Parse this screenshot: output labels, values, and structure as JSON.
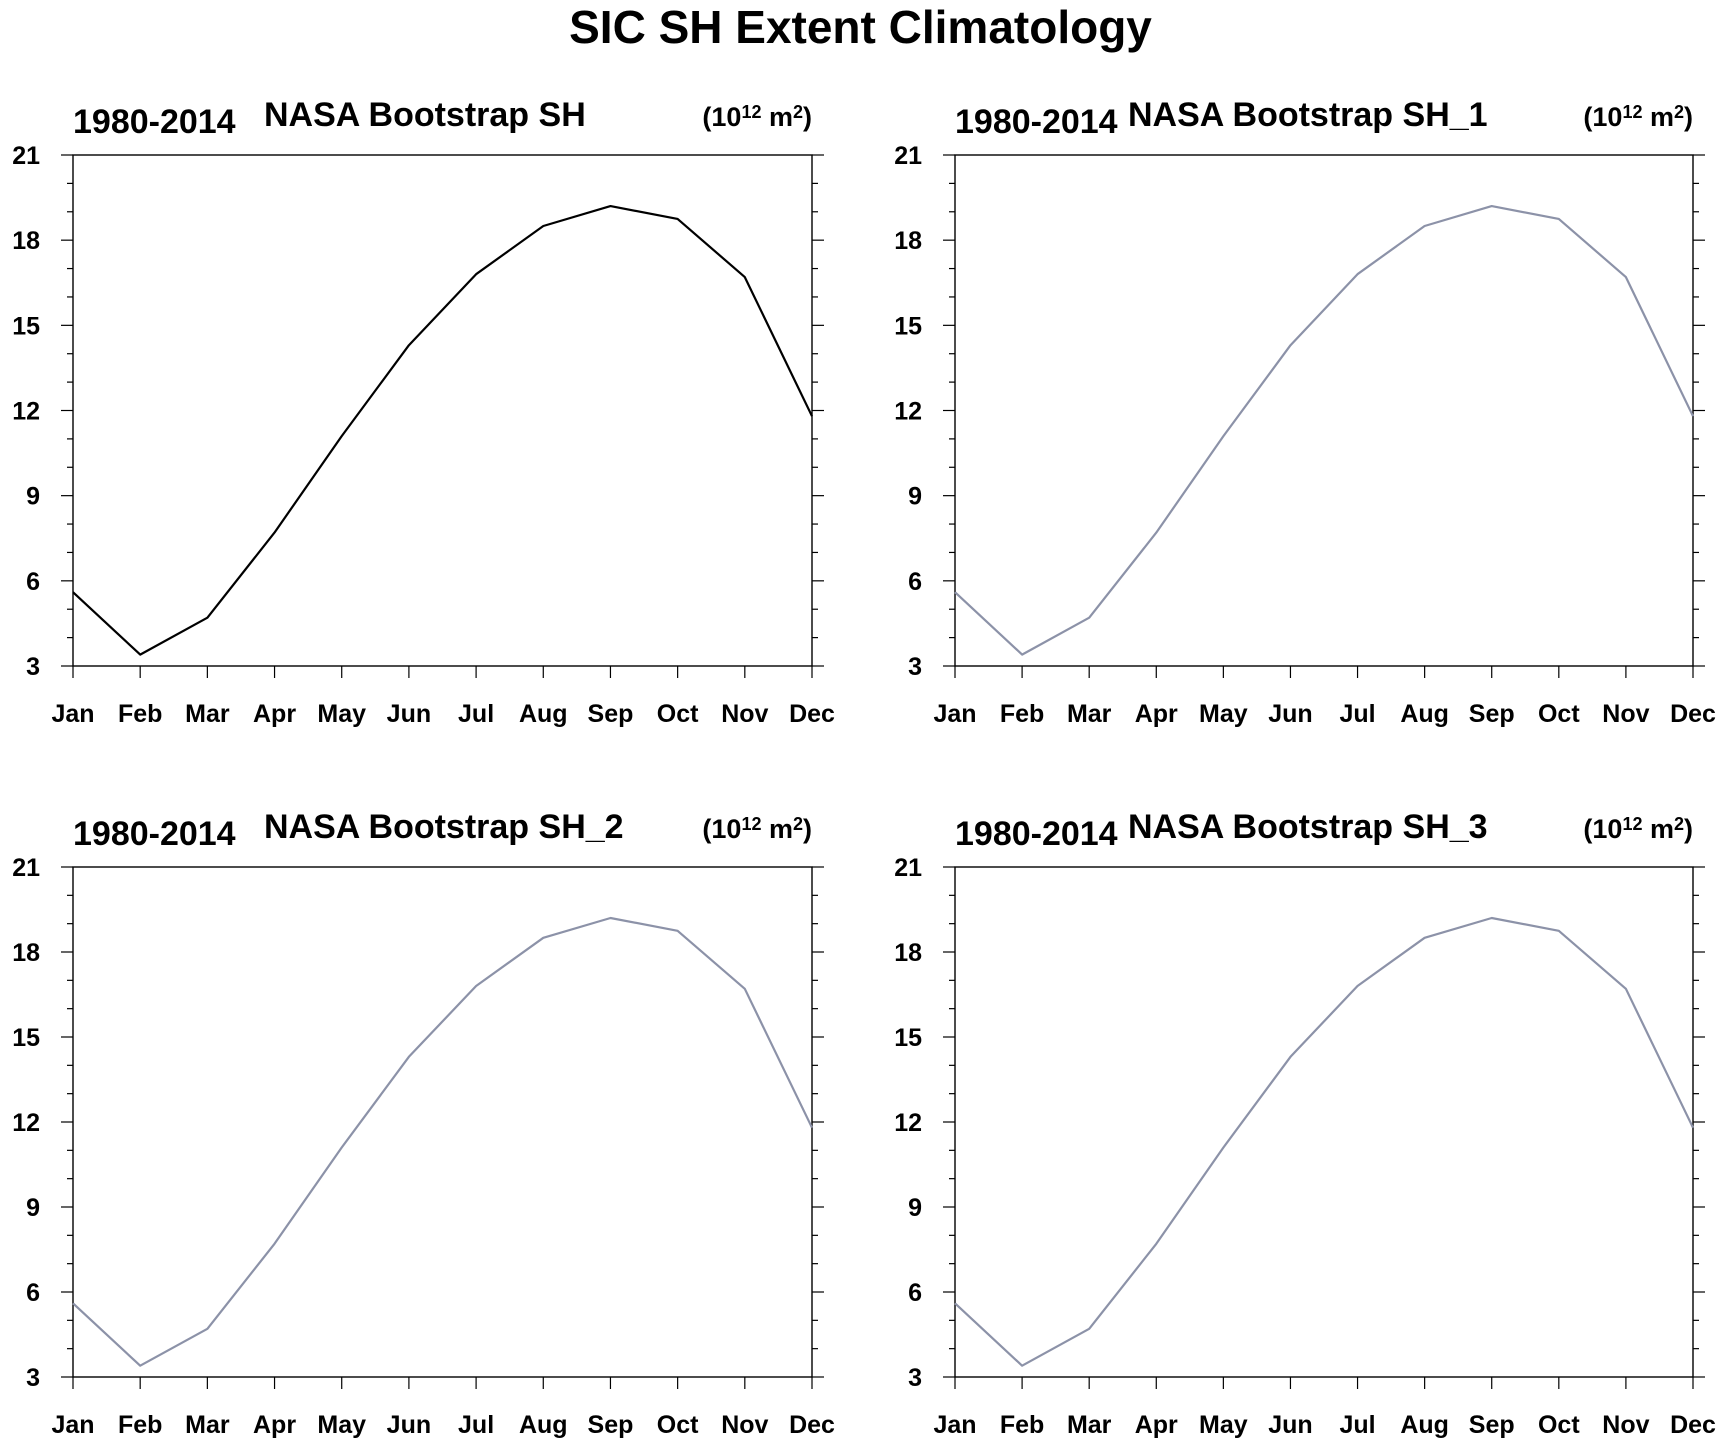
{
  "title": "SIC SH Extent Climatology",
  "chart_data": [
    {
      "type": "line",
      "left_label": "1980-2014",
      "center_label": "NASA Bootstrap SH",
      "units": {
        "base": "(10",
        "exp": "12",
        "mid": " m",
        "exp2": "2",
        "tail": ")"
      },
      "categories": [
        "Jan",
        "Feb",
        "Mar",
        "Apr",
        "May",
        "Jun",
        "Jul",
        "Aug",
        "Sep",
        "Oct",
        "Nov",
        "Dec"
      ],
      "series": [
        {
          "values": [
            5.6,
            3.4,
            4.7,
            7.7,
            11.1,
            14.3,
            16.8,
            18.5,
            19.2,
            18.75,
            16.7,
            11.8
          ],
          "color": "#000000"
        }
      ],
      "ylim": [
        3,
        21
      ],
      "yticks": [
        3,
        6,
        9,
        12,
        15,
        18,
        21
      ],
      "grid": false
    },
    {
      "type": "line",
      "left_label": "1980-2014",
      "center_label": "NASA Bootstrap SH_1",
      "units": {
        "base": "(10",
        "exp": "12",
        "mid": " m",
        "exp2": "2",
        "tail": ")"
      },
      "categories": [
        "Jan",
        "Feb",
        "Mar",
        "Apr",
        "May",
        "Jun",
        "Jul",
        "Aug",
        "Sep",
        "Oct",
        "Nov",
        "Dec"
      ],
      "series": [
        {
          "values": [
            5.6,
            3.4,
            4.7,
            7.7,
            11.1,
            14.3,
            16.8,
            18.5,
            19.2,
            18.75,
            16.7,
            11.8
          ],
          "color": "#8c92a8"
        }
      ],
      "ylim": [
        3,
        21
      ],
      "yticks": [
        3,
        6,
        9,
        12,
        15,
        18,
        21
      ],
      "grid": false
    },
    {
      "type": "line",
      "left_label": "1980-2014",
      "center_label": "NASA Bootstrap SH_2",
      "units": {
        "base": "(10",
        "exp": "12",
        "mid": " m",
        "exp2": "2",
        "tail": ")"
      },
      "categories": [
        "Jan",
        "Feb",
        "Mar",
        "Apr",
        "May",
        "Jun",
        "Jul",
        "Aug",
        "Sep",
        "Oct",
        "Nov",
        "Dec"
      ],
      "series": [
        {
          "values": [
            5.6,
            3.4,
            4.7,
            7.7,
            11.1,
            14.3,
            16.8,
            18.5,
            19.2,
            18.75,
            16.7,
            11.8
          ],
          "color": "#8c92a8"
        }
      ],
      "ylim": [
        3,
        21
      ],
      "yticks": [
        3,
        6,
        9,
        12,
        15,
        18,
        21
      ],
      "grid": false
    },
    {
      "type": "line",
      "left_label": "1980-2014",
      "center_label": "NASA Bootstrap SH_3",
      "units": {
        "base": "(10",
        "exp": "12",
        "mid": " m",
        "exp2": "2",
        "tail": ")"
      },
      "categories": [
        "Jan",
        "Feb",
        "Mar",
        "Apr",
        "May",
        "Jun",
        "Jul",
        "Aug",
        "Sep",
        "Oct",
        "Nov",
        "Dec"
      ],
      "series": [
        {
          "values": [
            5.6,
            3.4,
            4.7,
            7.7,
            11.1,
            14.3,
            16.8,
            18.5,
            19.2,
            18.75,
            16.7,
            11.8
          ],
          "color": "#8c92a8"
        }
      ],
      "ylim": [
        3,
        21
      ],
      "yticks": [
        3,
        6,
        9,
        12,
        15,
        18,
        21
      ],
      "grid": false
    }
  ]
}
